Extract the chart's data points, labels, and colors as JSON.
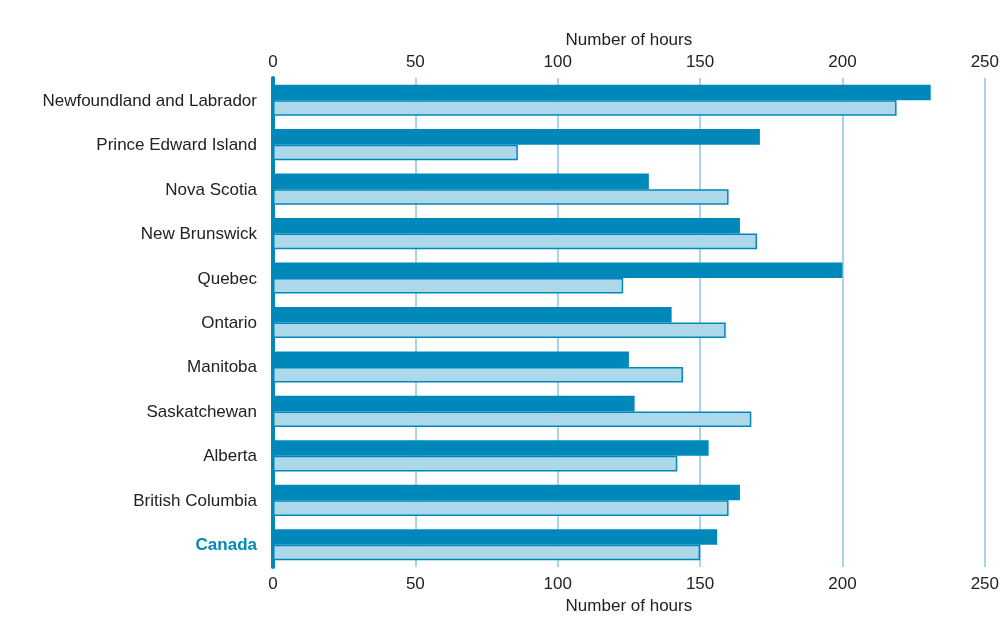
{
  "chart_data": {
    "type": "bar",
    "orientation": "horizontal",
    "categories": [
      "Newfoundland and Labrador",
      "Prince Edward Island",
      "Nova Scotia",
      "New Brunswick",
      "Quebec",
      "Ontario",
      "Manitoba",
      "Saskatchewan",
      "Alberta",
      "British Columbia",
      "Canada"
    ],
    "series": [
      {
        "color": "#0088bb",
        "values": [
          231,
          171,
          132,
          164,
          200,
          140,
          125,
          127,
          153,
          164,
          156
        ]
      },
      {
        "color": "#add8ea",
        "values": [
          219,
          86,
          160,
          170,
          123,
          159,
          144,
          168,
          142,
          160,
          150
        ]
      }
    ],
    "xlabel": "Number of hours",
    "x2label": "Number of hours",
    "xlim": [
      0,
      250
    ],
    "xticks": [
      0,
      50,
      100,
      150,
      200,
      250
    ],
    "x2lim": [
      0,
      250
    ],
    "x2ticks": [
      0,
      50,
      100,
      150,
      200,
      250
    ],
    "grid": "x"
  }
}
